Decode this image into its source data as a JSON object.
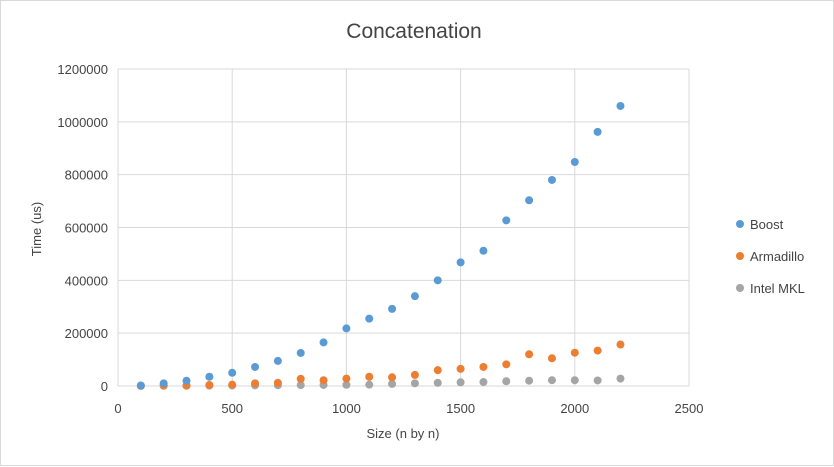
{
  "chart_data": {
    "type": "scatter",
    "title": "Concatenation",
    "xlabel": "Size (n by n)",
    "ylabel": "Time (us)",
    "xlim": [
      0,
      2500
    ],
    "ylim": [
      0,
      1200000
    ],
    "x_ticks": [
      "0",
      "500",
      "1000",
      "1500",
      "2000",
      "2500"
    ],
    "y_ticks": [
      "0",
      "200000",
      "400000",
      "600000",
      "800000",
      "1000000",
      "1200000"
    ],
    "grid": true,
    "legend_position": "right",
    "x": [
      100,
      200,
      300,
      400,
      500,
      600,
      700,
      800,
      900,
      1000,
      1100,
      1200,
      1300,
      1400,
      1500,
      1600,
      1700,
      1800,
      1900,
      2000,
      2100,
      2200
    ],
    "series": [
      {
        "name": "Boost",
        "color": "#5b9bd5",
        "values": [
          2000,
          10000,
          20000,
          35000,
          50000,
          72000,
          95000,
          125000,
          165000,
          218000,
          255000,
          292000,
          340000,
          400000,
          468000,
          512000,
          627000,
          703000,
          780000,
          848000,
          962000,
          1060000
        ]
      },
      {
        "name": "Armadillo",
        "color": "#ed7d31",
        "values": [
          1000,
          2000,
          2000,
          4000,
          5000,
          10000,
          12000,
          27000,
          22000,
          28000,
          35000,
          33000,
          42000,
          60000,
          65000,
          72000,
          82000,
          120000,
          105000,
          126000,
          134000,
          157000
        ]
      },
      {
        "name": "Intel MKL",
        "color": "#a5a5a5",
        "values": [
          500,
          800,
          1000,
          1500,
          2000,
          2500,
          3000,
          3500,
          4000,
          4500,
          5000,
          8000,
          10000,
          12000,
          14000,
          15000,
          18000,
          20000,
          22000,
          22000,
          21000,
          28000
        ]
      }
    ]
  }
}
